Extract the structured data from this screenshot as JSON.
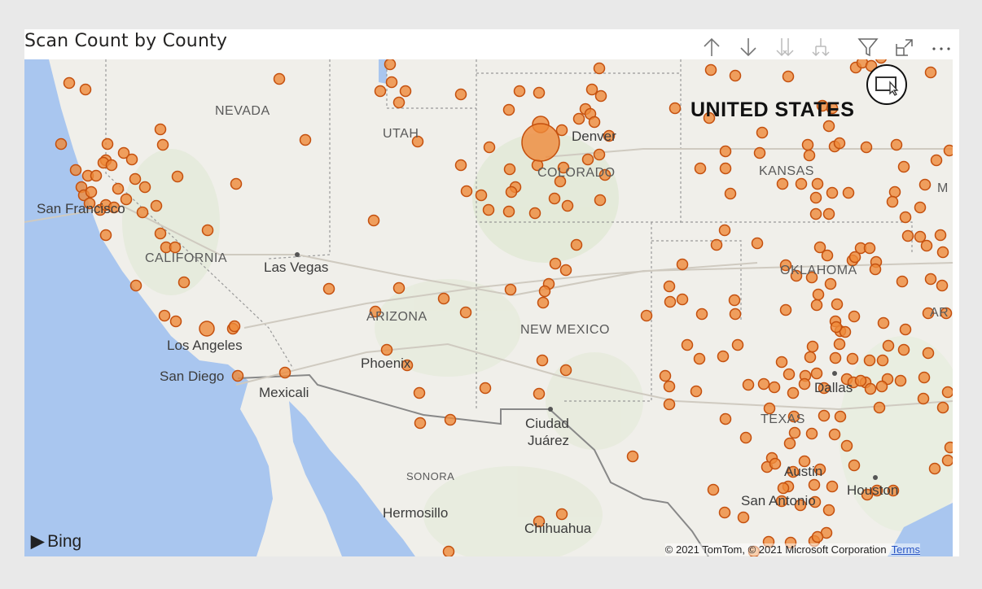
{
  "visual": {
    "title": "Scan Count by County",
    "header_icons": [
      "drill-up-icon",
      "drill-down-icon",
      "expand-next-level-icon",
      "expand-hierarchy-icon",
      "filter-icon",
      "focus-mode-icon",
      "more-options-icon"
    ],
    "lasso_button": "map-select-icon"
  },
  "map": {
    "country_label": "UNITED STATES",
    "states": [
      "NEVADA",
      "UTAH",
      "COLORADO",
      "KANSAS",
      "CALIFORNIA",
      "ARIZONA",
      "NEW MEXICO",
      "OKLAHOMA",
      "TEXAS",
      "SONORA",
      "M",
      "AR"
    ],
    "cities": [
      "Denver",
      "San Francisco",
      "Las Vegas",
      "Los Angeles",
      "San Diego",
      "Mexicali",
      "Phoenix",
      "Ciudad",
      "Juárez",
      "Hermosillo",
      "Chihuahua",
      "Dallas",
      "Austin",
      "San Antonio",
      "Houston"
    ],
    "bubble_color": "#ef8a3a",
    "bubble_stroke": "#c4500e",
    "land_color": "#f0efea",
    "water_color": "#a9c6ef"
  },
  "footer": {
    "logo": "Bing",
    "attribution": "© 2021 TomTom, © 2021 Microsoft Corporation",
    "terms_link": "Terms"
  }
}
